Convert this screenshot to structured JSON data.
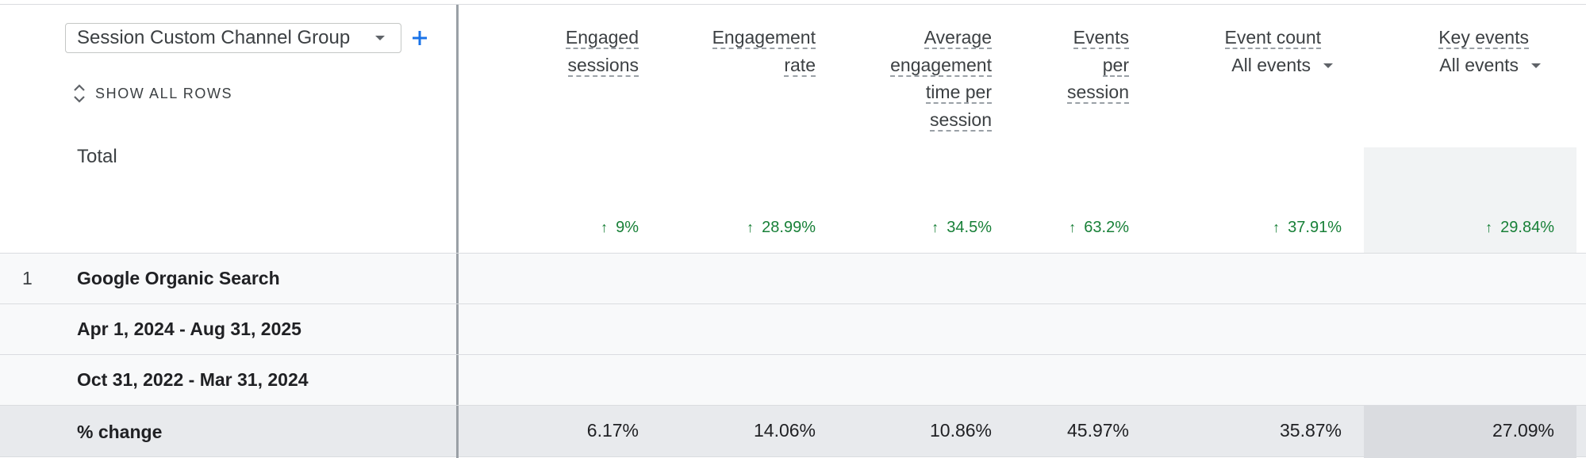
{
  "dimension": {
    "selected": "Session Custom Channel Group",
    "add_icon": "plus-icon",
    "show_all_rows": "SHOW ALL ROWS"
  },
  "total_label": "Total",
  "metrics": [
    {
      "header_lines": [
        "Engaged",
        "sessions"
      ],
      "total_change": "9%",
      "change": "6.17%"
    },
    {
      "header_lines": [
        "Engagement",
        "rate"
      ],
      "total_change": "28.99%",
      "change": "14.06%"
    },
    {
      "header_lines": [
        "Average",
        "engagement",
        "time per",
        "session"
      ],
      "total_change": "34.5%",
      "change": "10.86%"
    },
    {
      "header_lines": [
        "Events",
        "per",
        "session"
      ],
      "total_change": "63.2%",
      "change": "45.97%"
    },
    {
      "header_lines": [
        "Event count"
      ],
      "dropdown": "All events",
      "total_change": "37.91%",
      "change": "35.87%"
    },
    {
      "header_lines": [
        "Key events"
      ],
      "dropdown": "All events",
      "total_change": "29.84%",
      "change": "27.09%"
    }
  ],
  "rows": [
    {
      "index": "1",
      "label": "Google Organic Search"
    },
    {
      "index": "",
      "label": "Apr 1, 2024 - Aug 31, 2025"
    },
    {
      "index": "",
      "label": "Oct 31, 2022 - Mar 31, 2024"
    },
    {
      "index": "",
      "label": "% change"
    }
  ],
  "colors": {
    "positive": "#188038",
    "accent": "#1a73e8",
    "divider": "#9aa0a6"
  }
}
